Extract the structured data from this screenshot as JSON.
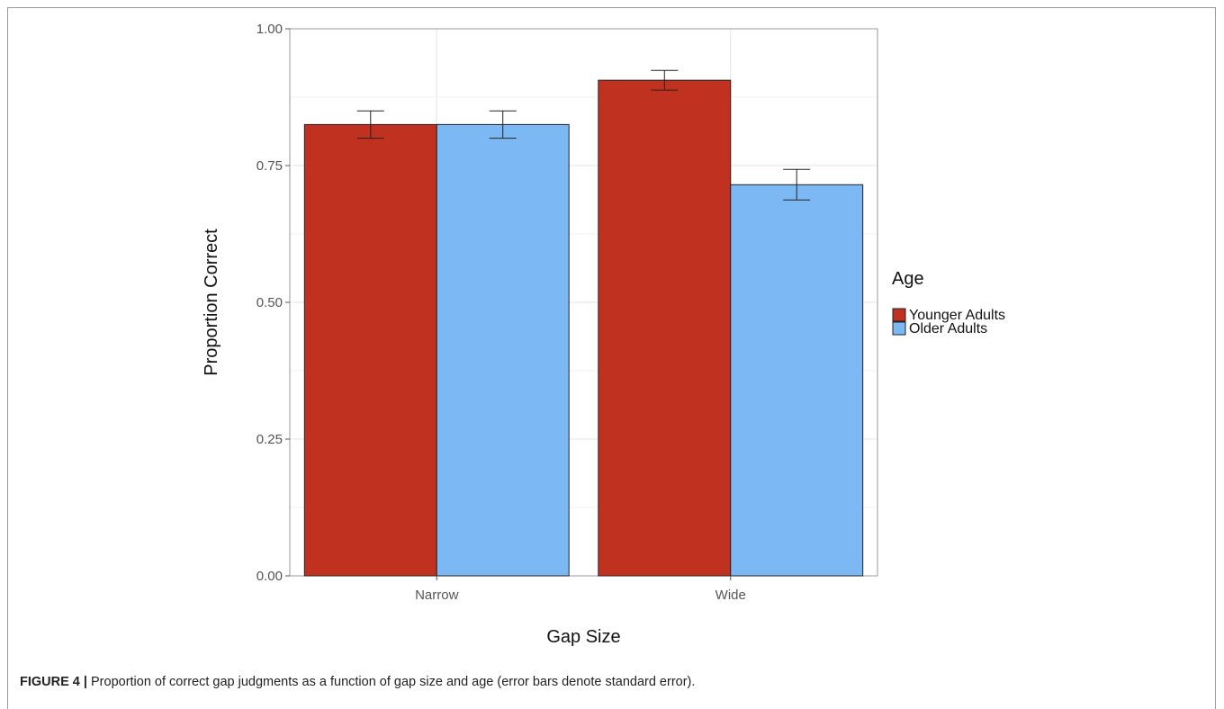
{
  "caption": {
    "label": "FIGURE 4 |",
    "text": "Proportion of correct gap judgments as a function of gap size and age (error bars denote standard error)."
  },
  "chart_data": {
    "type": "bar",
    "xlabel": "Gap Size",
    "ylabel": "Proportion Correct",
    "categories": [
      "Narrow",
      "Wide"
    ],
    "ylim": [
      0,
      1
    ],
    "yticks": [
      "0.00",
      "0.25",
      "0.50",
      "0.75",
      "1.00"
    ],
    "grid": true,
    "legend": {
      "title": "Age",
      "position": "right"
    },
    "series": [
      {
        "name": "Younger Adults",
        "color": "#c1311f",
        "values": [
          0.825,
          0.906
        ],
        "se": [
          0.025,
          0.018
        ]
      },
      {
        "name": "Older Adults",
        "color": "#7cb8f4",
        "values": [
          0.825,
          0.715
        ],
        "se": [
          0.025,
          0.028
        ]
      }
    ]
  }
}
